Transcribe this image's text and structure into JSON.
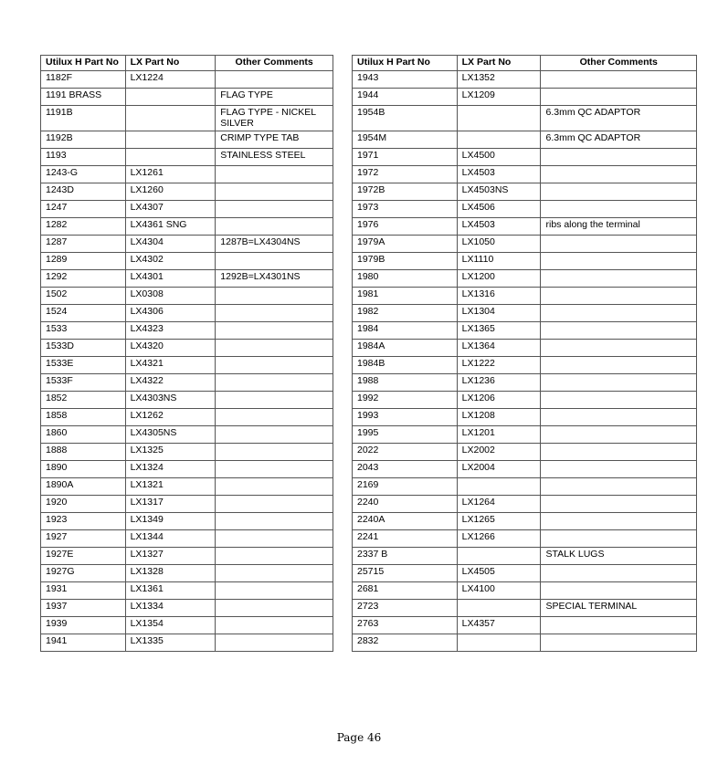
{
  "headers": [
    "Utilux H Part No",
    "LX Part No",
    "Other Comments"
  ],
  "left_table": [
    [
      "1182F",
      "LX1224",
      ""
    ],
    [
      "1191 BRASS",
      "",
      "FLAG TYPE"
    ],
    [
      "1191B",
      "",
      "FLAG TYPE - NICKEL SILVER"
    ],
    [
      "1192B",
      "",
      "CRIMP TYPE TAB"
    ],
    [
      "1193",
      "",
      "STAINLESS STEEL"
    ],
    [
      "1243-G",
      "LX1261",
      ""
    ],
    [
      "1243D",
      "LX1260",
      ""
    ],
    [
      "1247",
      "LX4307",
      ""
    ],
    [
      "1282",
      "LX4361 SNG",
      ""
    ],
    [
      "1287",
      "LX4304",
      "1287B=LX4304NS"
    ],
    [
      "1289",
      "LX4302",
      ""
    ],
    [
      "1292",
      "LX4301",
      "1292B=LX4301NS"
    ],
    [
      "1502",
      "LX0308",
      ""
    ],
    [
      "1524",
      "LX4306",
      ""
    ],
    [
      "1533",
      "LX4323",
      ""
    ],
    [
      "1533D",
      "LX4320",
      ""
    ],
    [
      "1533E",
      "LX4321",
      ""
    ],
    [
      "1533F",
      "LX4322",
      ""
    ],
    [
      "1852",
      "LX4303NS",
      ""
    ],
    [
      "1858",
      "LX1262",
      ""
    ],
    [
      "1860",
      "LX4305NS",
      ""
    ],
    [
      "1888",
      "LX1325",
      ""
    ],
    [
      "1890",
      "LX1324",
      ""
    ],
    [
      "1890A",
      "LX1321",
      ""
    ],
    [
      "1920",
      "LX1317",
      ""
    ],
    [
      "1923",
      "LX1349",
      ""
    ],
    [
      "1927",
      "LX1344",
      ""
    ],
    [
      "1927E",
      "LX1327",
      ""
    ],
    [
      "1927G",
      "LX1328",
      ""
    ],
    [
      "1931",
      "LX1361",
      ""
    ],
    [
      "1937",
      "LX1334",
      ""
    ],
    [
      "1939",
      "LX1354",
      ""
    ],
    [
      "1941",
      "LX1335",
      ""
    ]
  ],
  "right_table": [
    [
      "1943",
      "LX1352",
      ""
    ],
    [
      "1944",
      "LX1209",
      ""
    ],
    [
      "1954B",
      "",
      "6.3mm QC ADAPTOR"
    ],
    [
      "1954M",
      "",
      "6.3mm QC ADAPTOR"
    ],
    [
      "1971",
      "LX4500",
      ""
    ],
    [
      "1972",
      "LX4503",
      ""
    ],
    [
      "1972B",
      "LX4503NS",
      ""
    ],
    [
      "1973",
      "LX4506",
      ""
    ],
    [
      "1976",
      "LX4503",
      "ribs along the terminal"
    ],
    [
      "1979A",
      "LX1050",
      ""
    ],
    [
      "1979B",
      "LX1110",
      ""
    ],
    [
      "1980",
      "LX1200",
      ""
    ],
    [
      "1981",
      "LX1316",
      ""
    ],
    [
      "1982",
      "LX1304",
      ""
    ],
    [
      "1984",
      "LX1365",
      ""
    ],
    [
      "1984A",
      "LX1364",
      ""
    ],
    [
      "1984B",
      "LX1222",
      ""
    ],
    [
      "1988",
      "LX1236",
      ""
    ],
    [
      "1992",
      "LX1206",
      ""
    ],
    [
      "1993",
      "LX1208",
      ""
    ],
    [
      "1995",
      "LX1201",
      ""
    ],
    [
      "2022",
      "LX2002",
      ""
    ],
    [
      "2043",
      "LX2004",
      ""
    ],
    [
      "2169",
      "",
      ""
    ],
    [
      "2240",
      "LX1264",
      ""
    ],
    [
      "2240A",
      "LX1265",
      ""
    ],
    [
      "2241",
      "LX1266",
      ""
    ],
    [
      "2337 B",
      "",
      "STALK LUGS"
    ],
    [
      "25715",
      "LX4505",
      ""
    ],
    [
      "2681",
      "LX4100",
      ""
    ],
    [
      "2723",
      "",
      "SPECIAL TERMINAL"
    ],
    [
      "2763",
      "LX4357",
      ""
    ],
    [
      "2832",
      "",
      ""
    ]
  ],
  "footer": {
    "page_label": "Page 46"
  }
}
